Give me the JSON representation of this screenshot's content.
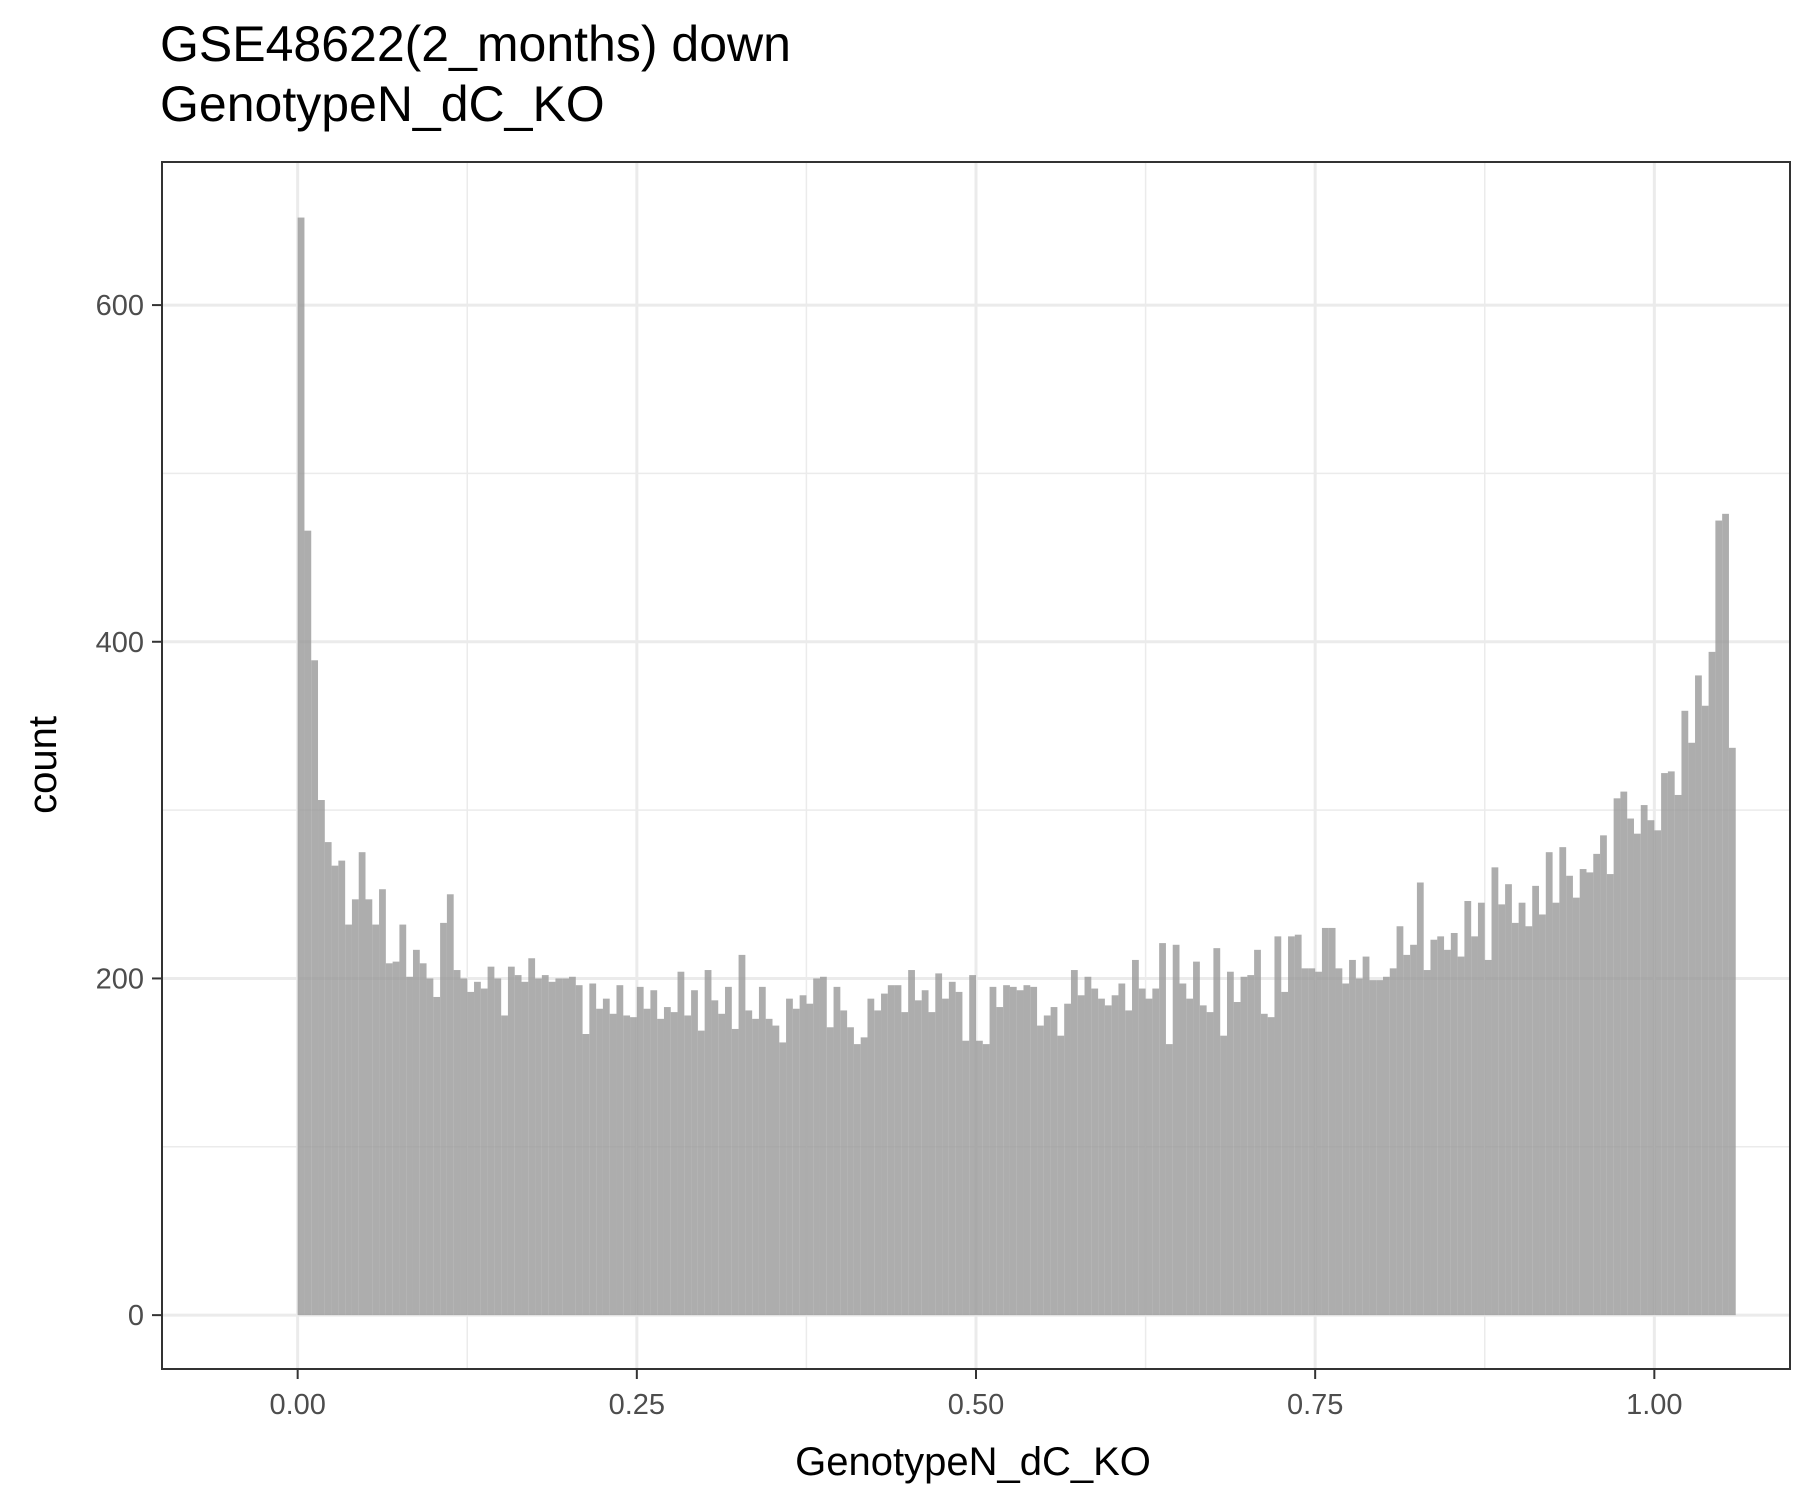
{
  "chart_data": {
    "type": "bar",
    "title": "GSE48622(2_months) down",
    "subtitle": "GenotypeN_dC_KO",
    "xlabel": "GenotypeN_dC_KO",
    "ylabel": "count",
    "xlim": [
      -0.1,
      1.1
    ],
    "ylim": [
      -32,
      685
    ],
    "x_ticks": [
      0.0,
      0.25,
      0.5,
      0.75,
      1.0
    ],
    "x_tick_labels": [
      "0.00",
      "0.25",
      "0.50",
      "0.75",
      "1.00"
    ],
    "y_ticks": [
      0,
      200,
      400,
      600
    ],
    "y_tick_labels": [
      "0",
      "200",
      "400",
      "600"
    ],
    "grid": true,
    "bar_color": "#999999",
    "bar_opacity": 0.8,
    "bin_width": 0.005,
    "bins_start": 0.0,
    "values": [
      652,
      466,
      389,
      306,
      281,
      267,
      270,
      232,
      247,
      275,
      247,
      232,
      253,
      209,
      210,
      232,
      201,
      217,
      209,
      200,
      189,
      233,
      250,
      205,
      200,
      192,
      198,
      194,
      207,
      200,
      178,
      207,
      202,
      198,
      212,
      200,
      202,
      198,
      200,
      200,
      201,
      196,
      167,
      197,
      182,
      188,
      179,
      196,
      178,
      177,
      195,
      182,
      193,
      176,
      183,
      180,
      204,
      178,
      193,
      169,
      205,
      187,
      179,
      195,
      170,
      214,
      181,
      176,
      195,
      176,
      172,
      162,
      188,
      182,
      190,
      185,
      200,
      201,
      171,
      195,
      181,
      171,
      161,
      165,
      188,
      181,
      191,
      196,
      196,
      180,
      205,
      187,
      193,
      180,
      203,
      188,
      198,
      192,
      163,
      202,
      163,
      161,
      195,
      183,
      196,
      195,
      193,
      196,
      195,
      172,
      178,
      183,
      166,
      185,
      205,
      190,
      201,
      194,
      188,
      184,
      190,
      197,
      181,
      211,
      194,
      188,
      194,
      221,
      161,
      220,
      197,
      188,
      210,
      184,
      180,
      218,
      166,
      204,
      186,
      201,
      202,
      217,
      179,
      177,
      225,
      192,
      225,
      226,
      206,
      206,
      204,
      230,
      230,
      206,
      197,
      211,
      200,
      213,
      199,
      199,
      201,
      206,
      231,
      214,
      220,
      257,
      205,
      223,
      225,
      217,
      227,
      213,
      246,
      225,
      245,
      211,
      266,
      244,
      256,
      233,
      245,
      231,
      255,
      238,
      275,
      245,
      278,
      261,
      248,
      265,
      263,
      274,
      285,
      262,
      307,
      311,
      295,
      286,
      303,
      294,
      288,
      322,
      323,
      309,
      359,
      340,
      380,
      362,
      394,
      472,
      476,
      337
    ]
  }
}
